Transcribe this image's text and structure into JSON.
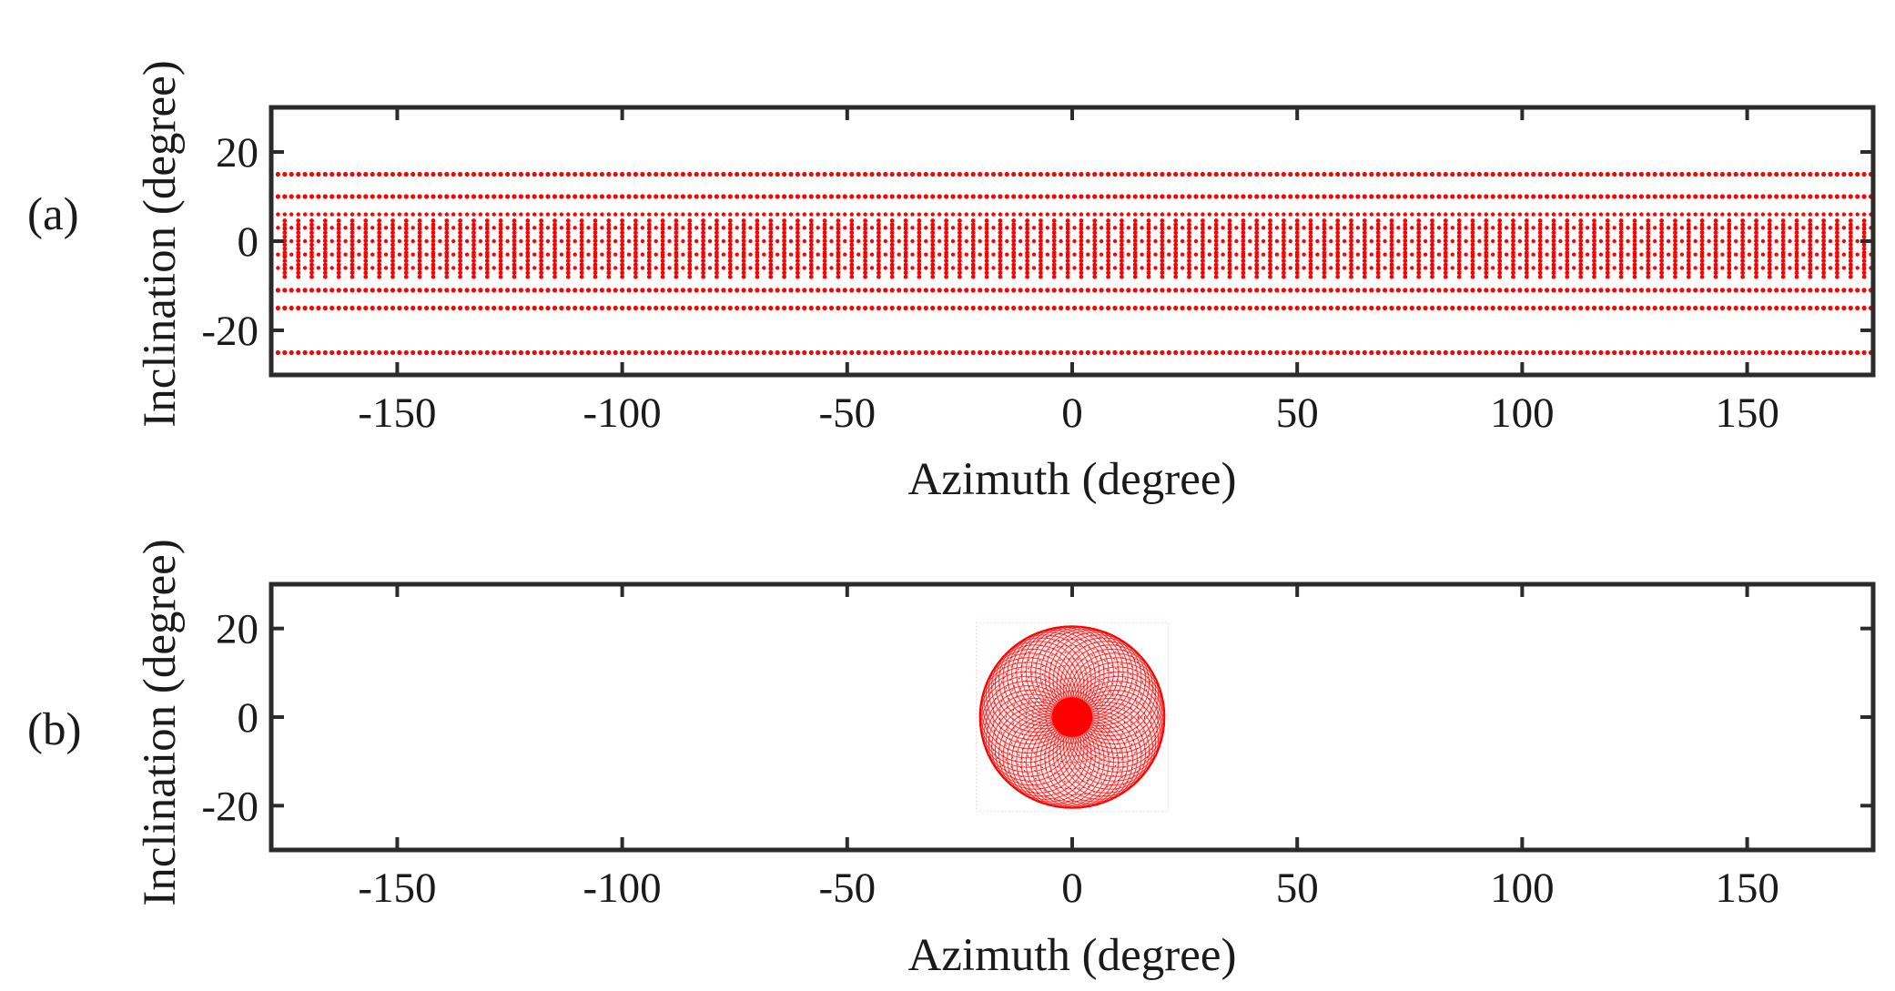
{
  "figure": {
    "marker_color": "#ff0000",
    "axis_color": "#2b2b2b"
  },
  "chart_data": [
    {
      "type": "scatter",
      "panel_label": "(a)",
      "xlabel": "Azimuth (degree)",
      "ylabel": "Inclination (degree)",
      "xlim": [
        -178,
        178
      ],
      "ylim": [
        -30,
        30
      ],
      "xticks": [
        -150,
        -100,
        -50,
        0,
        50,
        100,
        150
      ],
      "yticks": [
        -20,
        0,
        20
      ],
      "xtick_labels": [
        "-150",
        "-100",
        "-50",
        "0",
        "50",
        "100",
        "150"
      ],
      "ytick_labels": [
        "-20",
        "0",
        "20"
      ],
      "grid": false,
      "pattern": "rectangular azimuth-inclination grid of sample points",
      "inclination_rows": [
        15,
        10,
        6,
        3,
        0,
        -3,
        -6,
        -11,
        -15,
        -25
      ],
      "azimuth_start": -178,
      "azimuth_end": 178,
      "azimuth_step_outer_rows": 1.5,
      "azimuth_step_inner_columns": 3,
      "inner_column_range": [
        -8,
        5
      ]
    },
    {
      "type": "scatter",
      "panel_label": "(b)",
      "xlabel": "Azimuth (degree)",
      "ylabel": "Inclination (degree)",
      "xlim": [
        -178,
        178
      ],
      "ylim": [
        -30,
        30
      ],
      "xticks": [
        -150,
        -100,
        -50,
        0,
        50,
        100,
        150
      ],
      "yticks": [
        -20,
        0,
        20
      ],
      "xtick_labels": [
        "-150",
        "-100",
        "-50",
        "0",
        "50",
        "100",
        "150"
      ],
      "ytick_labels": [
        "-20",
        "0",
        "20"
      ],
      "grid": false,
      "pattern": "circular cluster of sample points centered at origin",
      "center": [
        0,
        0
      ],
      "radius": 20.5,
      "ring_count": 60,
      "points_per_ring": 120
    }
  ]
}
